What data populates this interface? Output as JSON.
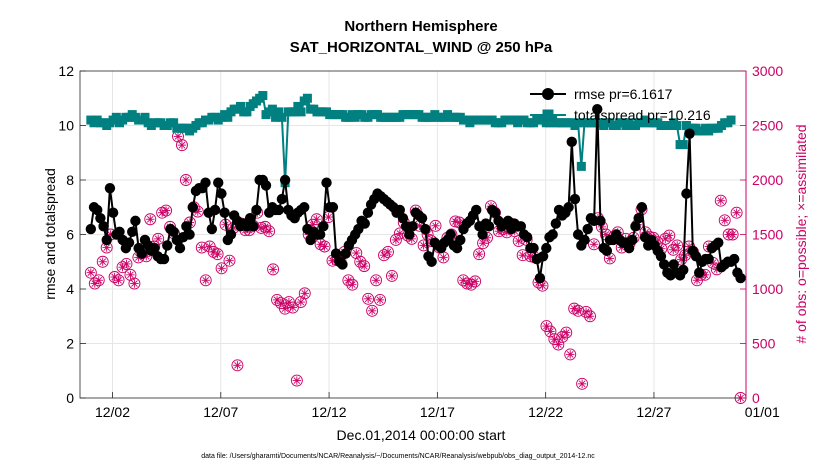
{
  "chart_data": {
    "type": "line",
    "title": [
      "Northern Hemisphere",
      "SAT_HORIZONTAL_WIND @ 250 hPa"
    ],
    "xlabel": "Dec.01,2014 00:00:00 start",
    "ylabel_left": "rmse and totalspread",
    "ylabel_right": "# of obs: o=possible; ×=assimilated",
    "xlim": [
      0.5,
      31.25
    ],
    "ylim_left": [
      0,
      12
    ],
    "ylim_right": [
      0,
      3000
    ],
    "x_ticks": [
      {
        "v": 2,
        "label": "12/02"
      },
      {
        "v": 7,
        "label": "12/07"
      },
      {
        "v": 12,
        "label": "12/12"
      },
      {
        "v": 17,
        "label": "12/17"
      },
      {
        "v": 22,
        "label": "12/22"
      },
      {
        "v": 27,
        "label": "12/27"
      },
      {
        "v": 32,
        "label": "01/01"
      }
    ],
    "left_ticks": [
      0,
      2,
      4,
      6,
      8,
      10,
      12
    ],
    "right_ticks": [
      0,
      500,
      1000,
      1500,
      2000,
      2500,
      3000
    ],
    "colors": {
      "rmse": "#000000",
      "spread": "#008080",
      "obs": "#cc0066",
      "grid": "#e6e6e6"
    },
    "legend": [
      {
        "name": "rmse pr=6.1617",
        "color": "#000000"
      },
      {
        "name": "totalspread pr=10.216",
        "color": "#008080"
      }
    ],
    "series": [
      {
        "name": "rmse",
        "axis": "left",
        "values": [
          6.2,
          7.0,
          6.9,
          6.6,
          6.3,
          5.8,
          7.7,
          6.8,
          6.0,
          6.1,
          5.8,
          5.5,
          5.7,
          6.1,
          6.5,
          5.5,
          5.3,
          5.8,
          5.6,
          5.4,
          5.5,
          5.2,
          5.1,
          5.1,
          5.6,
          6.2,
          6.1,
          5.8,
          5.5,
          5.9,
          6.3,
          6.0,
          7.0,
          7.6,
          7.7,
          7.7,
          7.9,
          6.8,
          6.2,
          6.9,
          7.9,
          7.5,
          6.8,
          5.8,
          6.0,
          6.7,
          6.5,
          6.3,
          6.4,
          6.3,
          6.6,
          6.3,
          6.9,
          8.0,
          8.0,
          7.8,
          6.8,
          7.0,
          6.9,
          6.9,
          7.3,
          8.0,
          6.9,
          6.7,
          6.6,
          6.8,
          6.9,
          7.0,
          6.2,
          5.8,
          6.1,
          6.0,
          6.0,
          6.3,
          7.9,
          7.0,
          7.0,
          5.3,
          5.0,
          4.9,
          5.3,
          5.6,
          5.8,
          6.0,
          6.2,
          6.5,
          6.4,
          6.8,
          7.1,
          7.3,
          7.5,
          7.4,
          7.3,
          7.2,
          7.1,
          7.0,
          6.8,
          6.9,
          6.6,
          6.3,
          6.0,
          6.3,
          6.8,
          6.7,
          6.6,
          6.2,
          5.2,
          5.0,
          5.7,
          5.6,
          5.5,
          5.7,
          5.8,
          6.0,
          5.6,
          5.5,
          5.8,
          6.2,
          6.4,
          6.5,
          6.7,
          6.9,
          6.3,
          6.0,
          6.4,
          6.3,
          6.9,
          6.8,
          6.5,
          6.3,
          6.4,
          6.5,
          6.2,
          6.4,
          6.3,
          6.3,
          6.0,
          5.9,
          5.5,
          5.5,
          5.1,
          4.4,
          5.2,
          5.5,
          5.9,
          6.0,
          6.4,
          6.9,
          6.7,
          6.8,
          7.0,
          9.4,
          7.3,
          6.0,
          5.6,
          5.8,
          6.2,
          6.6,
          6.5,
          10.6,
          6.5,
          5.5,
          5.4,
          5.8,
          5.8,
          6.0,
          5.8,
          5.7,
          5.7,
          5.5,
          5.8,
          6.3,
          6.6,
          7.0,
          5.9,
          5.6,
          5.8,
          5.6,
          5.4,
          5.2,
          4.9,
          4.6,
          4.5,
          4.9,
          4.6,
          4.5,
          4.7,
          7.5,
          9.7,
          5.4,
          5.2,
          4.6,
          5.0,
          5.1,
          5.1,
          5.5,
          5.6,
          5.7,
          4.8,
          4.9,
          5.0,
          5.0,
          5.1,
          4.6,
          4.4
        ]
      },
      {
        "name": "totalspread",
        "axis": "left",
        "values": [
          10.2,
          10.1,
          10.2,
          10.1,
          10.1,
          10.0,
          10.1,
          10.2,
          10.3,
          10.1,
          10.2,
          10.3,
          10.3,
          10.4,
          10.3,
          10.2,
          10.2,
          10.3,
          10.1,
          10.0,
          10.1,
          10.1,
          10.1,
          10.0,
          10.0,
          10.1,
          10.1,
          9.9,
          9.9,
          9.9,
          9.9,
          9.8,
          9.9,
          10.0,
          10.1,
          10.1,
          10.2,
          10.2,
          10.3,
          10.3,
          10.2,
          10.3,
          10.4,
          10.3,
          10.5,
          10.6,
          10.6,
          10.7,
          10.5,
          10.5,
          10.7,
          10.8,
          10.9,
          11.0,
          11.1,
          10.4,
          10.5,
          10.6,
          10.3,
          10.5,
          10.3,
          7.9,
          10.5,
          10.5,
          10.5,
          10.7,
          10.5,
          10.9,
          11.0,
          10.6,
          10.6,
          10.5,
          10.5,
          10.5,
          10.5,
          10.4,
          10.4,
          10.4,
          10.4,
          10.4,
          10.3,
          10.3,
          10.4,
          10.3,
          10.4,
          10.4,
          10.3,
          10.3,
          10.4,
          10.4,
          10.4,
          10.3,
          10.3,
          10.3,
          10.3,
          10.3,
          10.3,
          10.3,
          10.4,
          10.4,
          10.4,
          10.4,
          10.4,
          10.4,
          10.3,
          10.3,
          10.3,
          10.3,
          10.4,
          10.3,
          10.3,
          10.3,
          10.4,
          10.3,
          10.3,
          10.3,
          10.3,
          10.2,
          10.2,
          10.1,
          10.2,
          10.2,
          10.2,
          10.2,
          10.2,
          10.2,
          10.2,
          10.1,
          10.1,
          10.1,
          10.2,
          10.2,
          10.2,
          10.2,
          10.1,
          10.2,
          10.2,
          10.1,
          10.1,
          10.1,
          10.2,
          10.2,
          10.2,
          10.1,
          10.1,
          10.2,
          10.1,
          10.1,
          10.1,
          10.1,
          10.1,
          10.1,
          10.0,
          10.1,
          8.5,
          10.1,
          10.1,
          10.1,
          10.1,
          10.1,
          10.1,
          10.0,
          10.1,
          10.1,
          10.0,
          10.0,
          10.1,
          10.1,
          10.0,
          10.1,
          10.0,
          10.0,
          10.1,
          10.1,
          10.2,
          10.1,
          10.1,
          10.1,
          10.1,
          10.0,
          10.0,
          10.0,
          10.0,
          10.1,
          10.0,
          9.3,
          9.3,
          10.0,
          9.9,
          9.9,
          9.9,
          9.8,
          9.8,
          9.9,
          9.8,
          9.9,
          9.9,
          9.9,
          10.0,
          10.1,
          10.1,
          10.2
        ]
      },
      {
        "name": "obs_possible",
        "axis": "right",
        "values": [
          1150,
          1050,
          1080,
          1250,
          1380,
          1500,
          1110,
          1080,
          1200,
          1230,
          1130,
          1050,
          1290,
          1330,
          1300,
          1640,
          1390,
          1460,
          1700,
          1720,
          1570,
          1510,
          2400,
          2320,
          2000,
          1610,
          1750,
          1710,
          1380,
          1080,
          1390,
          1340,
          1320,
          1190,
          1590,
          1260,
          1560,
          300,
          1600,
          1540,
          1540,
          1580,
          1700,
          1560,
          1570,
          1530,
          1180,
          900,
          870,
          820,
          880,
          830,
          160,
          880,
          960,
          1500,
          1590,
          1640,
          1410,
          1390,
          1660,
          1260,
          1270,
          1260,
          1340,
          1080,
          1040,
          1330,
          1250,
          1210,
          910,
          800,
          1080,
          900,
          1310,
          1340,
          1120,
          1450,
          1510,
          1610,
          1490,
          1460,
          1720,
          1580,
          1400,
          1500,
          1440,
          1580,
          1380,
          1290,
          1470,
          1500,
          1620,
          1610,
          1080,
          1050,
          1040,
          1070,
          1320,
          1420,
          1470,
          1760,
          1700,
          1530,
          1550,
          1520,
          1600,
          1530,
          1440,
          1310,
          1450,
          1300,
          1290,
          1060,
          1030,
          660,
          610,
          540,
          490,
          560,
          600,
          400,
          820,
          800,
          130,
          790,
          750,
          1410,
          1650,
          1570,
          1500,
          1280,
          1480,
          1520,
          1380,
          1460,
          1420,
          1470,
          1590,
          1730,
          1520,
          1480,
          1470,
          1430,
          1370,
          1460,
          1490,
          1360,
          1400,
          1270,
          1310,
          1390,
          1340,
          1080,
          1130,
          1130,
          1390,
          1240,
          1180,
          1810,
          1630,
          1500,
          1500,
          1700,
          0
        ]
      },
      {
        "name": "obs_assimilated",
        "axis": "right",
        "values": [
          1150,
          1050,
          1080,
          1250,
          1380,
          1500,
          1110,
          1080,
          1200,
          1230,
          1130,
          1050,
          1290,
          1330,
          1300,
          1640,
          1390,
          1460,
          1700,
          1720,
          1570,
          1510,
          2400,
          2320,
          2000,
          1610,
          1750,
          1710,
          1380,
          1080,
          1390,
          1340,
          1320,
          1190,
          1590,
          1260,
          1560,
          300,
          1600,
          1540,
          1540,
          1580,
          1700,
          1560,
          1570,
          1530,
          1180,
          900,
          870,
          820,
          880,
          830,
          160,
          880,
          960,
          1500,
          1590,
          1640,
          1410,
          1390,
          1660,
          1260,
          1270,
          1260,
          1340,
          1080,
          1040,
          1330,
          1250,
          1210,
          910,
          800,
          1080,
          900,
          1310,
          1340,
          1120,
          1450,
          1510,
          1610,
          1490,
          1460,
          1720,
          1580,
          1400,
          1500,
          1440,
          1580,
          1380,
          1290,
          1470,
          1500,
          1620,
          1610,
          1080,
          1050,
          1040,
          1070,
          1320,
          1420,
          1470,
          1760,
          1700,
          1530,
          1550,
          1520,
          1600,
          1530,
          1440,
          1310,
          1450,
          1300,
          1290,
          1060,
          1030,
          660,
          610,
          540,
          490,
          560,
          600,
          400,
          820,
          800,
          130,
          790,
          750,
          1410,
          1650,
          1570,
          1500,
          1280,
          1480,
          1520,
          1380,
          1460,
          1420,
          1470,
          1590,
          1730,
          1520,
          1480,
          1470,
          1430,
          1370,
          1460,
          1490,
          1360,
          1400,
          1270,
          1310,
          1390,
          1340,
          1080,
          1130,
          1130,
          1390,
          1240,
          1180,
          1810,
          1630,
          1500,
          1500,
          1700,
          0
        ]
      }
    ]
  },
  "footer": "data file: /Users/gharamti/Documents/NCAR/Reanalysis/~/Documents/NCAR/Reanalysis/webpub/obs_diag_output_2014-12.nc"
}
